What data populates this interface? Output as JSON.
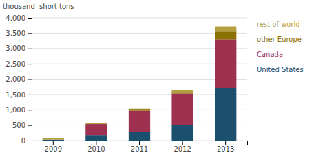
{
  "chart_data": {
    "type": "bar",
    "stacked": true,
    "y_label": "thousand  short tons",
    "categories": [
      "2009",
      "2010",
      "2011",
      "2012",
      "2013"
    ],
    "series": [
      {
        "name": "United States",
        "color": "#1b4f6e",
        "values": [
          30,
          175,
          270,
          510,
          1700
        ]
      },
      {
        "name": "Canada",
        "color": "#9e3050",
        "values": [
          0,
          360,
          700,
          1020,
          1600
        ]
      },
      {
        "name": "other Europe",
        "color": "#8b7200",
        "values": [
          0,
          0,
          55,
          50,
          270
        ]
      },
      {
        "name": "rest of world",
        "color": "#b5a040",
        "values": [
          60,
          30,
          10,
          60,
          150
        ]
      }
    ],
    "ylim": [
      0,
      4000
    ],
    "yticks": [
      0,
      500,
      {
        "value": 1000,
        "label": "1,000"
      },
      {
        "value": 1500,
        "label": "1,500"
      },
      {
        "value": 2000,
        "label": "2,000"
      },
      {
        "value": 2500,
        "label": "2,500"
      },
      {
        "value": 3000,
        "label": "3,000"
      },
      {
        "value": 3500,
        "label": "3,500"
      },
      {
        "value": 4000,
        "label": "4,000"
      }
    ],
    "grid": true,
    "legend": "right"
  }
}
